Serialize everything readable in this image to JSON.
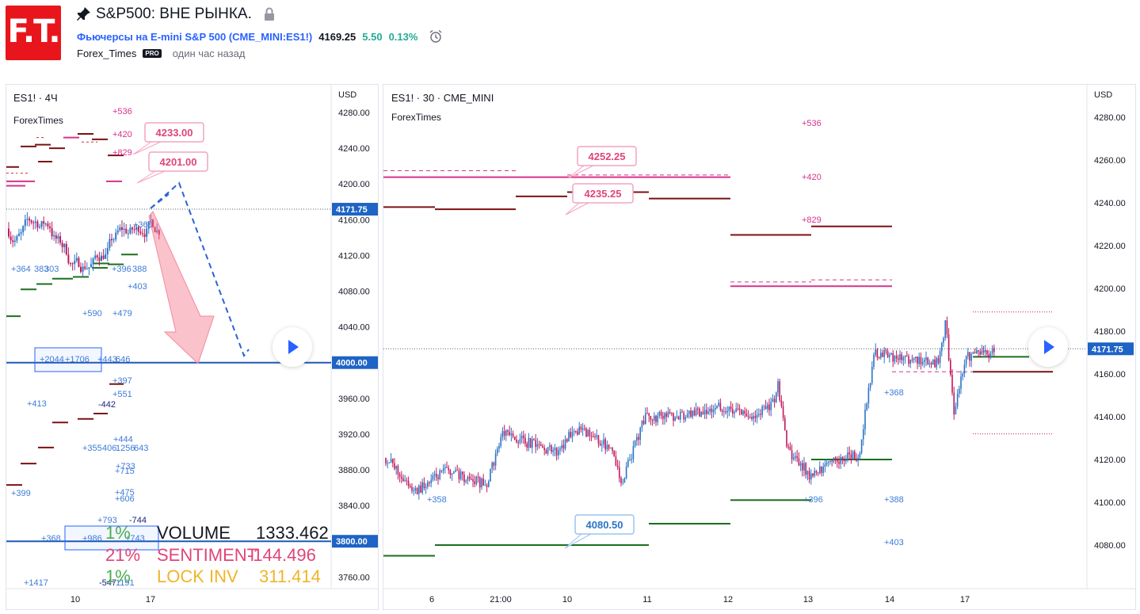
{
  "header": {
    "logo_text": "F.T.",
    "title": "S&P500: ВНЕ РЫНКА.",
    "symbol_name": "Фьючерсы на E-mini S&P 500",
    "symbol_code": "(CME_MINI:ES1!)",
    "price": "4169.25",
    "change": "5.50",
    "change_pct": "0.13%",
    "author": "Forex_Times",
    "badge": "PRO",
    "time_ago": "один час назад"
  },
  "colors": {
    "up": "#2a74c6",
    "down": "#c2185b",
    "resistance": "#7b1113",
    "support": "#1b6f1b",
    "magenta": "#d6338a",
    "accent": "#2962ff"
  },
  "chart1": {
    "title": "ES1! · 4Ч",
    "subtitle": "ForexTimes",
    "currency": "USD",
    "y_ticks": [
      "4280.00",
      "4240.00",
      "4200.00",
      "4160.00",
      "4120.00",
      "4080.00",
      "4040.00",
      "4000.00",
      "3960.00",
      "3920.00",
      "3880.00",
      "3840.00",
      "3800.00",
      "3760.00"
    ],
    "x_ticks": [
      "10",
      "17"
    ],
    "price_label": "4171.75",
    "level_4000": "4000.00",
    "level_3800": "3800.00",
    "callout_a": "4233.00",
    "callout_b": "4201.00",
    "annotations": [
      "+536",
      "+420",
      "+829",
      "+368",
      "+364",
      "383",
      "303",
      "+396",
      "388",
      "+403",
      "+590",
      "+479",
      "+2044",
      "+1706",
      "+443",
      "646",
      "+397",
      "+551",
      "+413",
      "-442",
      "+444",
      "+355",
      "406",
      "1256",
      "643",
      "+733",
      "+715",
      "+399",
      "+475",
      "+606",
      "+793",
      "-744",
      "+368",
      "+986",
      "+743",
      "+1417",
      "-547",
      "1191"
    ],
    "stats": [
      {
        "pct": "1%",
        "label": "VOLUME",
        "value": "1333.462"
      },
      {
        "pct": "21%",
        "label": "SENTIMENT",
        "value": "-144.496"
      },
      {
        "pct": "1%",
        "label": "LOCK INV",
        "value": "311.414"
      }
    ]
  },
  "chart2": {
    "title": "ES1! · 30 · CME_MINI",
    "subtitle": "ForexTimes",
    "currency": "USD",
    "y_ticks": [
      "4280.00",
      "4260.00",
      "4240.00",
      "4220.00",
      "4200.00",
      "4180.00",
      "4160.00",
      "4140.00",
      "4120.00",
      "4100.00",
      "4080.00"
    ],
    "x_ticks": [
      "6",
      "21:00",
      "10",
      "11",
      "12",
      "13",
      "14",
      "17"
    ],
    "price_label": "4171.75",
    "callout_a": "4252.25",
    "callout_b": "4235.25",
    "callout_c": "4080.50",
    "annotations": [
      "+536",
      "+420",
      "+829",
      "+368",
      "+358",
      "+396",
      "+388",
      "+403"
    ]
  }
}
